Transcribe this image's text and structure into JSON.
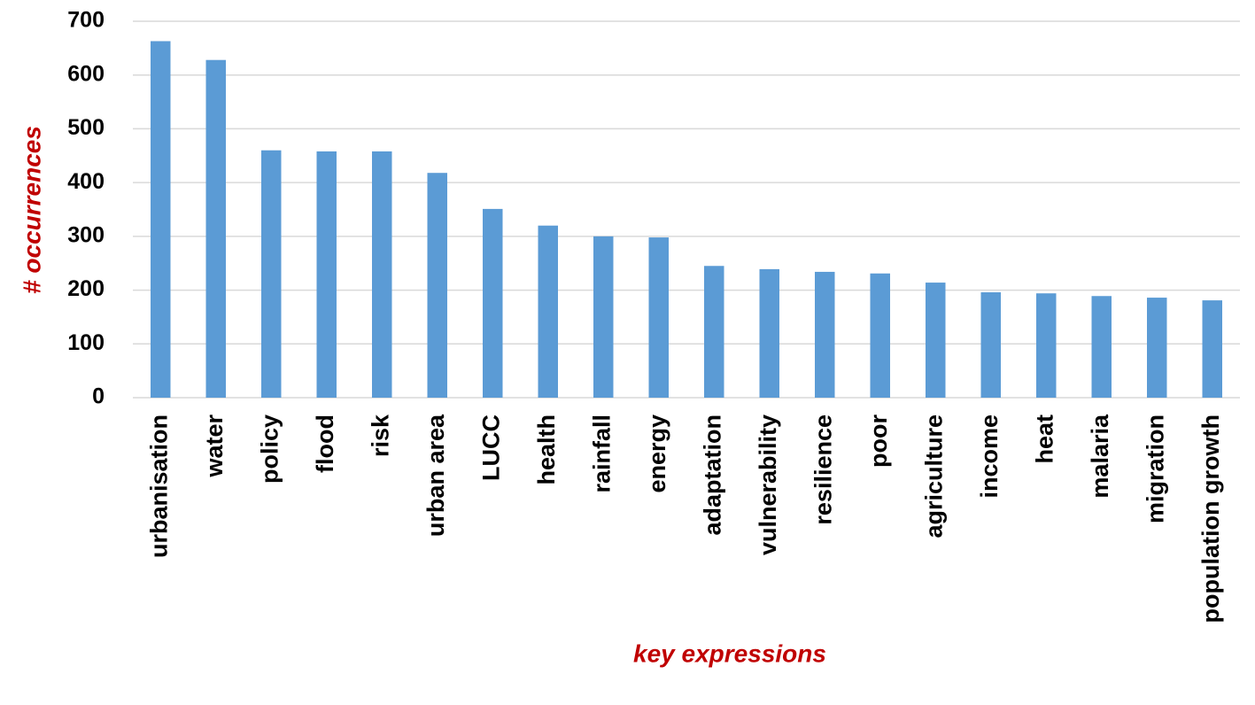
{
  "chart_data": {
    "type": "bar",
    "x_label": "key expressions",
    "y_label": "# occurrences",
    "categories": [
      "urbanisation",
      "water",
      "policy",
      "flood",
      "risk",
      "urban area",
      "LUCC",
      "health",
      "rainfall",
      "energy",
      "adaptation",
      "vulnerability",
      "resilience",
      "poor",
      "agriculture",
      "income",
      "heat",
      "malaria",
      "migration",
      "population growth"
    ],
    "values": [
      663,
      628,
      460,
      458,
      458,
      418,
      351,
      320,
      300,
      298,
      245,
      239,
      234,
      231,
      214,
      196,
      194,
      189,
      186,
      181
    ],
    "color": "#5b9bd5",
    "ylim": [
      0,
      700
    ],
    "yticks": [
      0,
      100,
      200,
      300,
      400,
      500,
      600,
      700
    ],
    "grid": true
  }
}
